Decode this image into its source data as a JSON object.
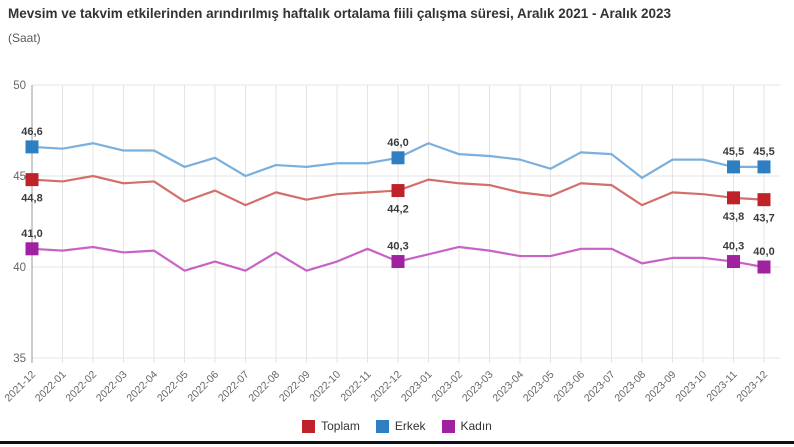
{
  "header": {
    "title": "Mevsim ve takvim etkilerinden arındırılmış haftalık ortalama fiili çalışma süresi, Aralık 2021 - Aralık 2023",
    "subtitle": "(Saat)"
  },
  "colors": {
    "grid": "#e4e4e4",
    "axis_line": "#9a9a9a",
    "tick_label": "#666666",
    "data_label": "#3c3c3c",
    "footer_bar": "#0f0f17"
  },
  "chart_data": {
    "type": "line",
    "x": [
      "2021-12",
      "2022-01",
      "2022-02",
      "2022-03",
      "2022-04",
      "2022-05",
      "2022-06",
      "2022-07",
      "2022-08",
      "2022-09",
      "2022-10",
      "2022-11",
      "2022-12",
      "2023-01",
      "2023-02",
      "2023-03",
      "2023-04",
      "2023-05",
      "2023-06",
      "2023-07",
      "2023-08",
      "2023-09",
      "2023-10",
      "2023-11",
      "2023-12"
    ],
    "ylim": [
      35,
      50
    ],
    "yticks": [
      50,
      45,
      40,
      35
    ],
    "grid": true,
    "legend_position": "bottom",
    "labeled_indices": [
      0,
      12,
      23,
      24
    ],
    "decimal_separator": ",",
    "series": [
      {
        "name": "Toplam",
        "marker_color": "#bf2228",
        "line_color": "#d36f6b",
        "label_side": "below",
        "values": [
          44.8,
          44.7,
          45.0,
          44.6,
          44.7,
          43.6,
          44.2,
          43.4,
          44.1,
          43.7,
          44.0,
          44.1,
          44.2,
          44.8,
          44.6,
          44.5,
          44.1,
          43.9,
          44.6,
          44.5,
          43.4,
          44.1,
          44.0,
          43.8,
          43.7
        ],
        "labeled_values": [
          "44,8",
          "44,2",
          "43,8",
          "43,7"
        ]
      },
      {
        "name": "Erkek",
        "marker_color": "#2e7fc2",
        "line_color": "#7bb0dd",
        "label_side": "above",
        "values": [
          46.6,
          46.5,
          46.8,
          46.4,
          46.4,
          45.5,
          46.0,
          45.0,
          45.6,
          45.5,
          45.7,
          45.7,
          46.0,
          46.8,
          46.2,
          46.1,
          45.9,
          45.4,
          46.3,
          46.2,
          44.9,
          45.9,
          45.9,
          45.5,
          45.5
        ],
        "labeled_values": [
          "46,6",
          "46,0",
          "45,5",
          "45,5"
        ]
      },
      {
        "name": "Kadın",
        "marker_color": "#a022a0",
        "line_color": "#c863c6",
        "label_side": "above",
        "values": [
          41.0,
          40.9,
          41.1,
          40.8,
          40.9,
          39.8,
          40.3,
          39.8,
          40.8,
          39.8,
          40.3,
          41.0,
          40.3,
          40.7,
          41.1,
          40.9,
          40.6,
          40.6,
          41.0,
          41.0,
          40.2,
          40.5,
          40.5,
          40.3,
          40.0
        ],
        "labeled_values": [
          "41,0",
          "40,3",
          "40,3",
          "40,0"
        ]
      }
    ]
  }
}
